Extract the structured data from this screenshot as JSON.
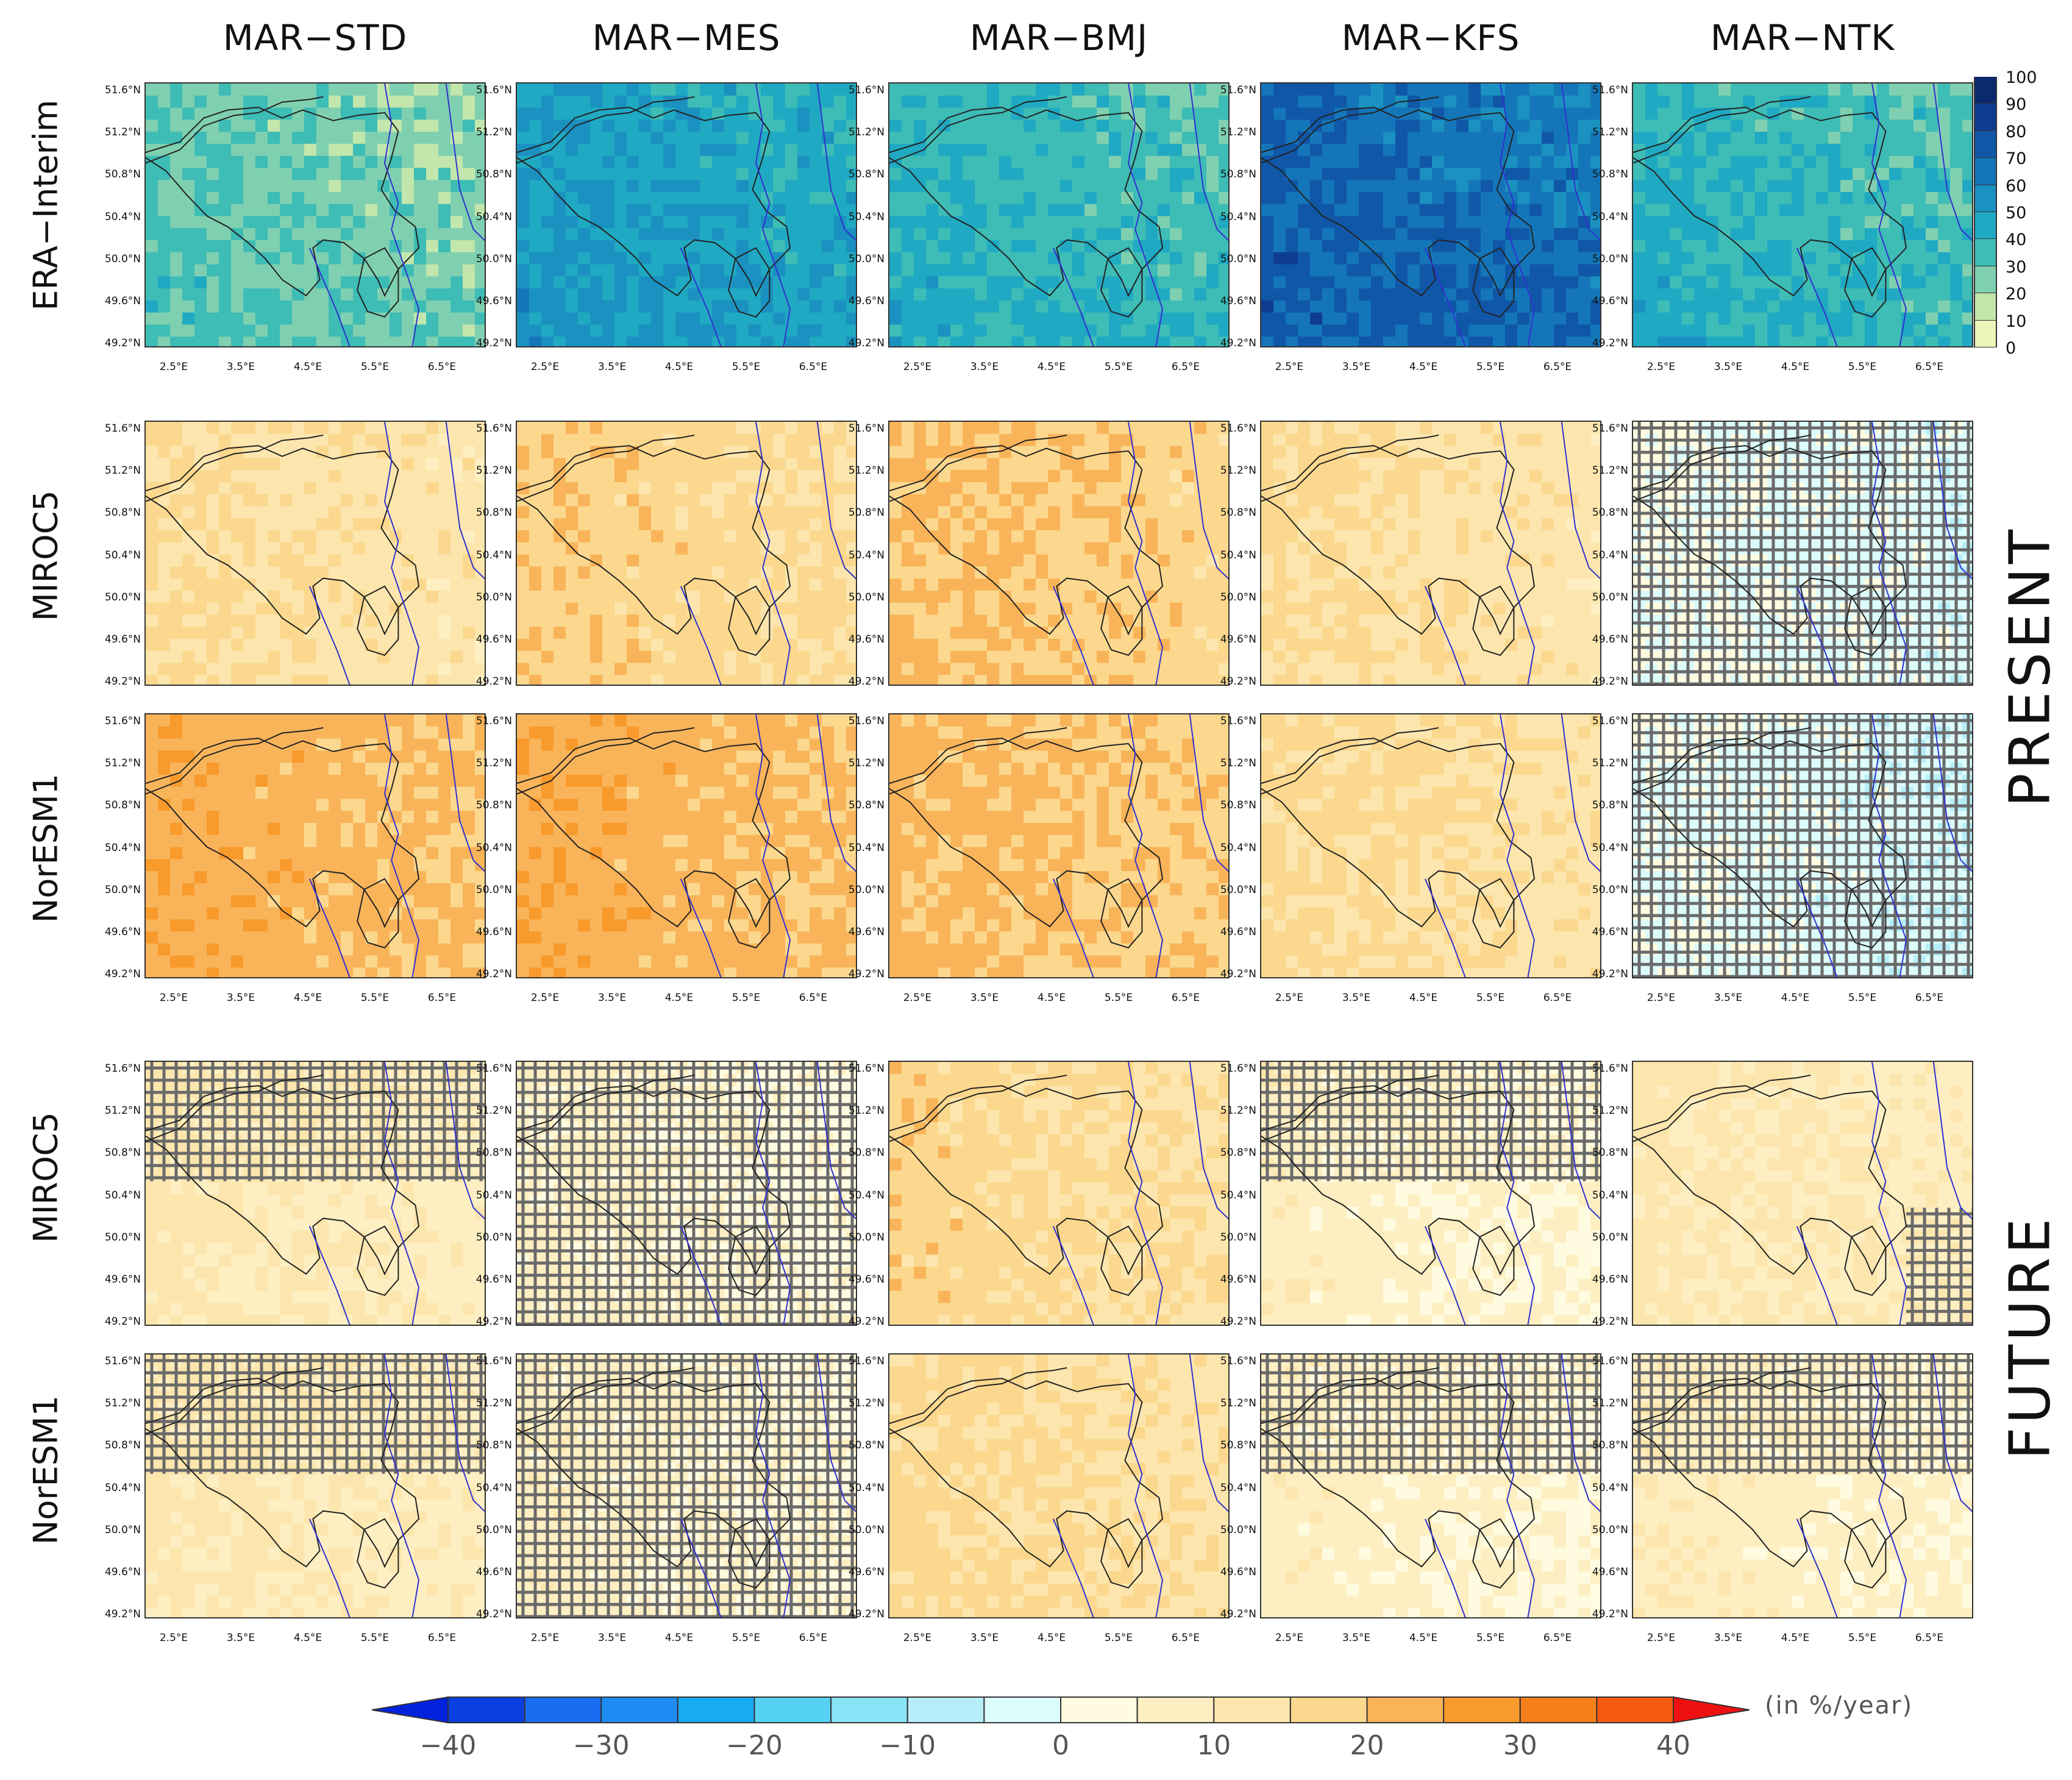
{
  "columns": [
    "MAR−STD",
    "MAR−MES",
    "MAR−BMJ",
    "MAR−KFS",
    "MAR−NTK"
  ],
  "rows": [
    "ERA−Interim",
    "MIROC5",
    "NorESM1",
    "MIROC5",
    "NorESM1"
  ],
  "periods": [
    "PRESENT",
    "FUTURE"
  ],
  "lat_labels": [
    "51.6°N",
    "51.2°N",
    "50.8°N",
    "50.4°N",
    "50.0°N",
    "49.6°N",
    "49.2°N"
  ],
  "lon_labels": [
    "2.5°E",
    "3.5°E",
    "4.5°E",
    "5.5°E",
    "6.5°E"
  ],
  "top_colorbar": {
    "ticks": [
      "100",
      "90",
      "80",
      "70",
      "60",
      "50",
      "40",
      "30",
      "20",
      "10",
      "0"
    ],
    "colors": [
      "#0b2a6e",
      "#0e3d8f",
      "#1057a8",
      "#1476b8",
      "#1a91c0",
      "#20a9c2",
      "#3ebcb6",
      "#7fd0b0",
      "#c2e6ab",
      "#eef5b8",
      "#ffffff"
    ]
  },
  "bottom_colorbar": {
    "ticks": [
      "−40",
      "−30",
      "−20",
      "−10",
      "0",
      "10",
      "20",
      "30",
      "40"
    ],
    "unit": "(in %/year)",
    "colors": [
      "#0a3fe0",
      "#1a6cf0",
      "#1e8cf2",
      "#18aaf2",
      "#55d2f2",
      "#8ae2f6",
      "#b6edf8",
      "#dcfbfb",
      "#fffbe0",
      "#fdefc2",
      "#fce6ad",
      "#fbd88e",
      "#f9b45a",
      "#f89a2c",
      "#f77f1a",
      "#f65a12"
    ],
    "low_arrow_color": "#0022dd",
    "high_arrow_color": "#ee1111"
  },
  "chart_data": {
    "type": "heatmap",
    "title": "",
    "xlabel": "",
    "ylabel": "",
    "x_range_degE": [
      2.1,
      7.0
    ],
    "y_range_degN": [
      49.2,
      51.8
    ],
    "row_0_variable_range": [
      0,
      100
    ],
    "rows_1_to_4_unit": "%/year",
    "rows_1_to_4_range": [
      -40,
      40
    ],
    "panels": [
      {
        "row": "ERA-Interim",
        "model": "MAR-STD",
        "typical_value": 25,
        "hatched": "none"
      },
      {
        "row": "ERA-Interim",
        "model": "MAR-MES",
        "typical_value": 45,
        "hatched": "none"
      },
      {
        "row": "ERA-Interim",
        "model": "MAR-BMJ",
        "typical_value": 35,
        "hatched": "none"
      },
      {
        "row": "ERA-Interim",
        "model": "MAR-KFS",
        "typical_value": 65,
        "hatched": "none"
      },
      {
        "row": "ERA-Interim",
        "model": "MAR-NTK",
        "typical_value": 35,
        "hatched": "none"
      },
      {
        "row": "PRESENT MIROC5",
        "model": "MAR-STD",
        "typical_value": 12,
        "hatched": "none"
      },
      {
        "row": "PRESENT MIROC5",
        "model": "MAR-MES",
        "typical_value": 15,
        "hatched": "none"
      },
      {
        "row": "PRESENT MIROC5",
        "model": "MAR-BMJ",
        "typical_value": 17,
        "hatched": "none"
      },
      {
        "row": "PRESENT MIROC5",
        "model": "MAR-KFS",
        "typical_value": 12,
        "hatched": "none"
      },
      {
        "row": "PRESENT MIROC5",
        "model": "MAR-NTK",
        "typical_value": -3,
        "hatched": "most"
      },
      {
        "row": "PRESENT NorESM1",
        "model": "MAR-STD",
        "typical_value": 20,
        "hatched": "none"
      },
      {
        "row": "PRESENT NorESM1",
        "model": "MAR-MES",
        "typical_value": 20,
        "hatched": "none"
      },
      {
        "row": "PRESENT NorESM1",
        "model": "MAR-BMJ",
        "typical_value": 18,
        "hatched": "none"
      },
      {
        "row": "PRESENT NorESM1",
        "model": "MAR-KFS",
        "typical_value": 13,
        "hatched": "none"
      },
      {
        "row": "PRESENT NorESM1",
        "model": "MAR-NTK",
        "typical_value": -4,
        "hatched": "most"
      },
      {
        "row": "FUTURE MIROC5",
        "model": "MAR-STD",
        "typical_value": 8,
        "hatched": "partial"
      },
      {
        "row": "FUTURE MIROC5",
        "model": "MAR-MES",
        "typical_value": 3,
        "hatched": "most"
      },
      {
        "row": "FUTURE MIROC5",
        "model": "MAR-BMJ",
        "typical_value": 14,
        "hatched": "none"
      },
      {
        "row": "FUTURE MIROC5",
        "model": "MAR-KFS",
        "typical_value": 4,
        "hatched": "partial"
      },
      {
        "row": "FUTURE MIROC5",
        "model": "MAR-NTK",
        "typical_value": 8,
        "hatched": "small"
      },
      {
        "row": "FUTURE NorESM1",
        "model": "MAR-STD",
        "typical_value": 8,
        "hatched": "partial"
      },
      {
        "row": "FUTURE NorESM1",
        "model": "MAR-MES",
        "typical_value": 4,
        "hatched": "most"
      },
      {
        "row": "FUTURE NorESM1",
        "model": "MAR-BMJ",
        "typical_value": 13,
        "hatched": "none"
      },
      {
        "row": "FUTURE NorESM1",
        "model": "MAR-KFS",
        "typical_value": 4,
        "hatched": "partial"
      },
      {
        "row": "FUTURE NorESM1",
        "model": "MAR-NTK",
        "typical_value": 5,
        "hatched": "partial"
      }
    ]
  }
}
